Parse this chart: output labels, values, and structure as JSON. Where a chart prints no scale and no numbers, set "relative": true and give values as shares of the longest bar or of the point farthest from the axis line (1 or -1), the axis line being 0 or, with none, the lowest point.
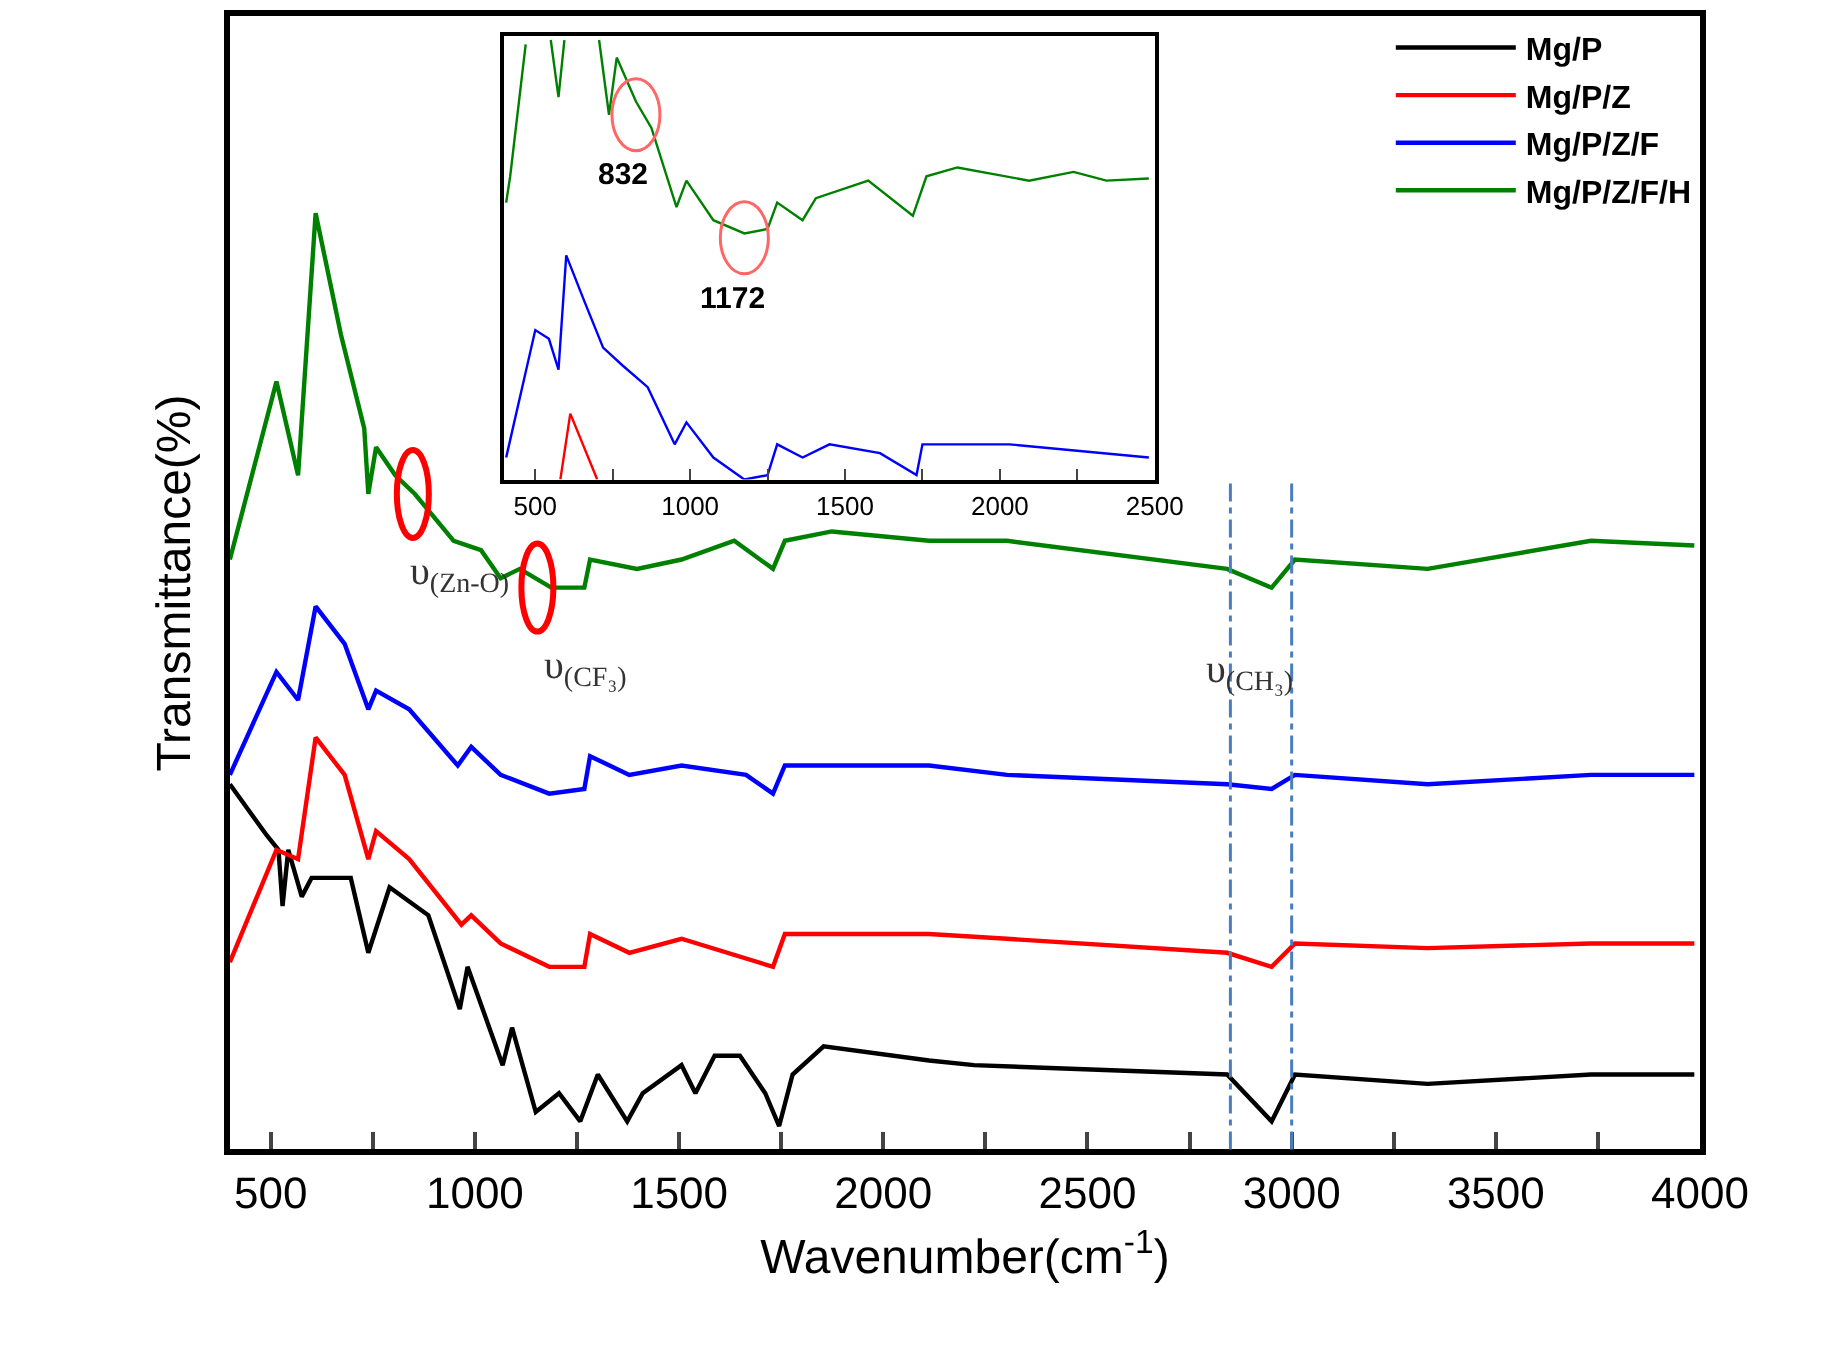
{
  "chart_data": [
    {
      "type": "line",
      "relative": true,
      "xlabel": "Wavenumber(cm$^{-1}$)",
      "ylabel": "Transmittance(%)",
      "xlim": [
        400,
        4000
      ],
      "xticks": [
        500,
        {
          "value": 750,
          "label": null
        },
        1000,
        {
          "value": 1250,
          "label": null
        },
        1500,
        {
          "value": 1750,
          "label": null
        },
        2000,
        {
          "value": 2250,
          "label": null
        },
        2500,
        {
          "value": 2750,
          "label": null
        },
        3000,
        {
          "value": 3250,
          "label": null
        },
        3500,
        {
          "value": 3750,
          "label": null
        },
        4000
      ],
      "tick_labels": "x",
      "legend": "top right",
      "marker": "none",
      "line_style": "solid",
      "series": [
        {
          "name": "Mg/P",
          "color": "#000000",
          "x": [
            400,
            491,
            519,
            529,
            543,
            576,
            600,
            696,
            739,
            791,
            886,
            963,
            982,
            1068,
            1091,
            1149,
            1206,
            1258,
            1301,
            1373,
            1411,
            1506,
            1540,
            1587,
            1649,
            1711,
            1745,
            1778,
            1854,
            2112,
            2222,
            2842,
            2951,
            3008,
            3333,
            3733,
            3986
          ],
          "values": [
            0.39,
            0.335,
            0.32,
            0.26,
            0.32,
            0.27,
            0.29,
            0.29,
            0.21,
            0.28,
            0.25,
            0.15,
            0.195,
            0.09,
            0.13,
            0.04,
            0.06,
            0.03,
            0.08,
            0.03,
            0.06,
            0.09,
            0.06,
            0.1,
            0.1,
            0.06,
            0.025,
            0.08,
            0.11,
            0.095,
            0.09,
            0.08,
            0.03,
            0.08,
            0.07,
            0.08,
            0.08
          ]
        },
        {
          "name": "Mg/P/Z",
          "color": "#ff0000",
          "x": [
            400,
            514,
            567,
            610,
            681,
            739,
            758,
            839,
            967,
            991,
            1063,
            1182,
            1268,
            1282,
            1378,
            1506,
            1730,
            1759,
            2112,
            2303,
            2842,
            2951,
            3008,
            3333,
            3733,
            3986
          ],
          "values": [
            0.2,
            0.32,
            0.31,
            0.44,
            0.4,
            0.31,
            0.34,
            0.31,
            0.24,
            0.25,
            0.22,
            0.195,
            0.195,
            0.23,
            0.21,
            0.225,
            0.195,
            0.23,
            0.23,
            0.225,
            0.21,
            0.195,
            0.22,
            0.215,
            0.22,
            0.22
          ]
        },
        {
          "name": "Mg/P/Z/F",
          "color": "#0000ff",
          "x": [
            400,
            514,
            567,
            610,
            681,
            739,
            758,
            839,
            958,
            991,
            1063,
            1182,
            1268,
            1282,
            1378,
            1506,
            1664,
            1730,
            1759,
            2112,
            2303,
            2842,
            2951,
            3008,
            3333,
            3733,
            3986
          ],
          "values": [
            0.4,
            0.51,
            0.48,
            0.58,
            0.54,
            0.47,
            0.49,
            0.47,
            0.41,
            0.43,
            0.4,
            0.38,
            0.385,
            0.42,
            0.4,
            0.41,
            0.4,
            0.38,
            0.41,
            0.41,
            0.4,
            0.39,
            0.385,
            0.4,
            0.39,
            0.4,
            0.4
          ]
        },
        {
          "name": "Mg/P/Z/F/H",
          "color": "#008000",
          "x": [
            400,
            514,
            567,
            610,
            672,
            729,
            739,
            758,
            805,
            853,
            948,
            1015,
            1063,
            1110,
            1187,
            1268,
            1282,
            1397,
            1506,
            1635,
            1730,
            1759,
            1874,
            2112,
            2303,
            2842,
            2951,
            3008,
            3333,
            3733,
            3986
          ],
          "values": [
            0.63,
            0.82,
            0.72,
            1.0,
            0.87,
            0.77,
            0.7,
            0.75,
            0.72,
            0.7,
            0.65,
            0.64,
            0.61,
            0.62,
            0.6,
            0.6,
            0.63,
            0.62,
            0.63,
            0.65,
            0.62,
            0.65,
            0.66,
            0.65,
            0.65,
            0.62,
            0.6,
            0.63,
            0.62,
            0.65,
            0.645
          ]
        }
      ],
      "ref_lines": [
        {
          "axis": "x",
          "value": 2850,
          "label": "υ$_{(CH₃)}$",
          "color": "#4a7ebf",
          "line_style": "dashdot"
        },
        {
          "axis": "x",
          "value": 3000,
          "color": "#4a7ebf",
          "line_style": "dashdot"
        }
      ],
      "annotations": [
        {
          "text": "υ$_{(Zn-O)}$",
          "x": 848,
          "y": 0.7
        },
        {
          "text": "υ$_{(CF₃)}$",
          "x": 1153,
          "y": 0.6
        }
      ]
    },
    {
      "type": "line",
      "relative": true,
      "xlim": [
        400,
        2500
      ],
      "xticks": [
        500,
        {
          "value": 750,
          "label": null
        },
        1000,
        {
          "value": 1250,
          "label": null
        },
        1500,
        {
          "value": 1750,
          "label": null
        },
        2000,
        {
          "value": 2250,
          "label": null
        },
        2500
      ],
      "tick_labels": "x",
      "marker": "none",
      "line_style": "solid",
      "series": [
        {
          "color": "#ff0000",
          "x": [
            581,
            613,
            700
          ],
          "values": [
            0,
            0.15,
            0
          ]
        },
        {
          "color": "#0000ff",
          "x": [
            406,
            500,
            544,
            575,
            600,
            656,
            719,
            781,
            863,
            950,
            988,
            1075,
            1175,
            1250,
            1281,
            1363,
            1450,
            1613,
            1731,
            1750,
            2031,
            2481
          ],
          "values": [
            0.05,
            0.34,
            0.32,
            0.25,
            0.51,
            0.41,
            0.3,
            0.26,
            0.21,
            0.08,
            0.13,
            0.05,
            0,
            0.01,
            0.08,
            0.05,
            0.08,
            0.06,
            0.01,
            0.08,
            0.08,
            0.05
          ]
        },
        {
          "color": "#008000",
          "x": [
            406,
            419,
            469,
            510,
            550,
            575,
            594,
            650,
            706,
            738,
            763,
            825,
            875,
            956,
            988,
            1075,
            1175,
            1250,
            1281,
            1363,
            1406,
            1575,
            1719,
            1763,
            1863,
            2094,
            2238,
            2344,
            2481
          ],
          "values": [
            0.63,
            0.69,
            0.99,
            null,
            1.0,
            0.87,
            1.0,
            null,
            1.0,
            0.83,
            0.96,
            0.86,
            0.8,
            0.62,
            0.68,
            0.59,
            0.56,
            0.57,
            0.63,
            0.59,
            0.64,
            0.68,
            0.6,
            0.69,
            0.71,
            0.68,
            0.7,
            0.68,
            0.685
          ]
        }
      ],
      "annotations": [
        {
          "text": "832",
          "x": 825,
          "y": 0.83
        },
        {
          "text": "1172",
          "x": 1175,
          "y": 0.55
        }
      ]
    }
  ]
}
